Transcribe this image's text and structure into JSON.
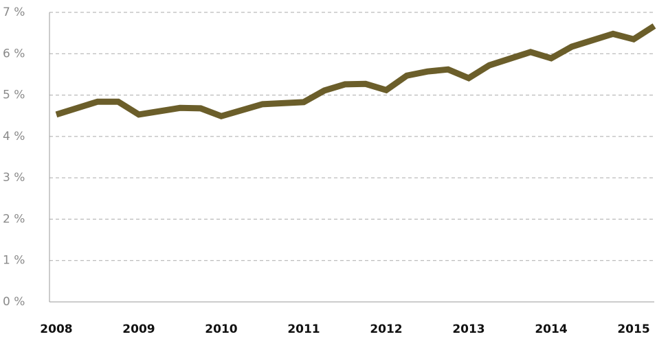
{
  "chart_data": {
    "type": "line",
    "x": [
      2008,
      2008.5,
      2008.75,
      2009,
      2009.5,
      2009.75,
      2010,
      2010.5,
      2011,
      2011.25,
      2011.5,
      2011.75,
      2012,
      2012.25,
      2012.5,
      2012.75,
      2013,
      2013.25,
      2013.75,
      2014,
      2014.25,
      2014.75,
      2015,
      2015.25
    ],
    "series": [
      {
        "color": "#6b5e2a",
        "values": [
          4.53,
          4.84,
          4.84,
          4.53,
          4.69,
          4.68,
          4.49,
          4.78,
          4.83,
          5.11,
          5.26,
          5.27,
          5.12,
          5.47,
          5.57,
          5.62,
          5.41,
          5.72,
          6.04,
          5.89,
          6.17,
          6.48,
          6.35,
          6.67
        ]
      }
    ],
    "xlim": [
      2007.917,
      2015.25
    ],
    "xticks": [
      2008,
      2009,
      2010,
      2011,
      2012,
      2013,
      2014,
      2015
    ],
    "ylim": [
      0,
      7
    ],
    "yticks": [
      {
        "value": 0,
        "label": "0 %"
      },
      {
        "value": 1,
        "label": "1 %"
      },
      {
        "value": 2,
        "label": "2 %"
      },
      {
        "value": 3,
        "label": "3 %"
      },
      {
        "value": 4,
        "label": "4 %"
      },
      {
        "value": 5,
        "label": "5 %"
      },
      {
        "value": 6,
        "label": "6 %"
      },
      {
        "value": 7,
        "label": "7 %"
      }
    ],
    "grid": true
  }
}
